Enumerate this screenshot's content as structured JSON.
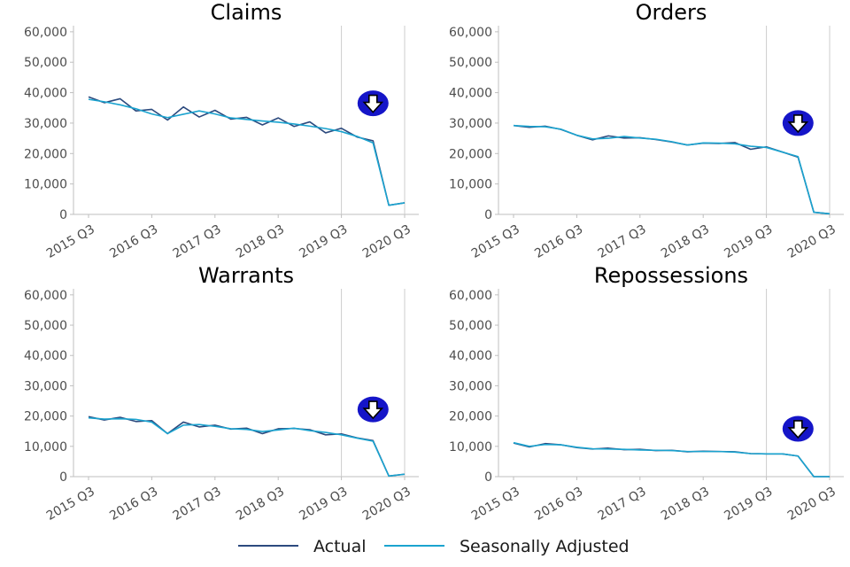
{
  "colors": {
    "actual": "#2c4a7e",
    "seasonally_adjusted": "#1aa3cf",
    "axis": "#bfbfbf",
    "marker_line": "#cccccc",
    "arrow_circle": "#1515c8",
    "arrow_outline": "#000000",
    "arrow_fill": "#ffffff"
  },
  "legend": {
    "actual_label": "Actual",
    "adjusted_label": "Seasonally Adjusted"
  },
  "chart_data": [
    {
      "type": "line",
      "title": "Claims",
      "x": [
        "2015 Q3",
        "2015 Q4",
        "2016 Q1",
        "2016 Q2",
        "2016 Q3",
        "2016 Q4",
        "2017 Q1",
        "2017 Q2",
        "2017 Q3",
        "2017 Q4",
        "2018 Q1",
        "2018 Q2",
        "2018 Q3",
        "2018 Q4",
        "2019 Q1",
        "2019 Q2",
        "2019 Q3",
        "2019 Q4",
        "2020 Q1",
        "2020 Q2",
        "2020 Q3"
      ],
      "xticks": [
        "2015 Q3",
        "2016 Q3",
        "2017 Q3",
        "2018 Q3",
        "2019 Q3",
        "2020 Q3"
      ],
      "yticks": [
        "0",
        "10,000",
        "20,000",
        "30,000",
        "40,000",
        "50,000",
        "60,000"
      ],
      "ylim": [
        0,
        62000
      ],
      "series": [
        {
          "name": "Actual",
          "values": [
            38600,
            36700,
            38000,
            34000,
            34500,
            31000,
            35300,
            32000,
            34200,
            31300,
            31900,
            29400,
            31700,
            28900,
            30400,
            26800,
            28300,
            25400,
            24200,
            3000,
            3800
          ]
        },
        {
          "name": "Seasonally Adjusted",
          "values": [
            37800,
            37000,
            36000,
            34700,
            33000,
            31800,
            32900,
            34000,
            33000,
            31700,
            31200,
            30700,
            30300,
            29700,
            29000,
            28200,
            27200,
            25600,
            23500,
            3000,
            3800
          ]
        }
      ],
      "vlines": [
        "2019 Q3",
        "2020 Q3"
      ],
      "indicator": {
        "direction": "down",
        "x": "2020 Q1",
        "y": 36500
      }
    },
    {
      "type": "line",
      "title": "Orders",
      "x": [
        "2015 Q3",
        "2015 Q4",
        "2016 Q1",
        "2016 Q2",
        "2016 Q3",
        "2016 Q4",
        "2017 Q1",
        "2017 Q2",
        "2017 Q3",
        "2017 Q4",
        "2018 Q1",
        "2018 Q2",
        "2018 Q3",
        "2018 Q4",
        "2019 Q1",
        "2019 Q2",
        "2019 Q3",
        "2019 Q4",
        "2020 Q1",
        "2020 Q2",
        "2020 Q3"
      ],
      "xticks": [
        "2015 Q3",
        "2016 Q3",
        "2017 Q3",
        "2018 Q3",
        "2019 Q3",
        "2020 Q3"
      ],
      "yticks": [
        "0",
        "10,000",
        "20,000",
        "30,000",
        "40,000",
        "50,000",
        "60,000"
      ],
      "ylim": [
        0,
        62000
      ],
      "series": [
        {
          "name": "Actual",
          "values": [
            29200,
            28600,
            29000,
            27900,
            26000,
            24500,
            25800,
            25100,
            25200,
            24600,
            23800,
            22800,
            23400,
            23300,
            23600,
            21400,
            22200,
            20500,
            18800,
            700,
            200
          ]
        },
        {
          "name": "Seasonally Adjusted",
          "values": [
            29200,
            28900,
            28800,
            28000,
            26000,
            24800,
            25000,
            25600,
            25100,
            24700,
            23900,
            22800,
            23500,
            23400,
            23200,
            22400,
            22000,
            20500,
            19000,
            700,
            200
          ]
        }
      ],
      "vlines": [
        "2019 Q3",
        "2020 Q3"
      ],
      "indicator": {
        "direction": "down",
        "x": "2020 Q1",
        "y": 30000
      }
    },
    {
      "type": "line",
      "title": "Warrants",
      "x": [
        "2015 Q3",
        "2015 Q4",
        "2016 Q1",
        "2016 Q2",
        "2016 Q3",
        "2016 Q4",
        "2017 Q1",
        "2017 Q2",
        "2017 Q3",
        "2017 Q4",
        "2018 Q1",
        "2018 Q2",
        "2018 Q3",
        "2018 Q4",
        "2019 Q1",
        "2019 Q2",
        "2019 Q3",
        "2019 Q4",
        "2020 Q1",
        "2020 Q2",
        "2020 Q3"
      ],
      "xticks": [
        "2015 Q3",
        "2016 Q3",
        "2017 Q3",
        "2018 Q3",
        "2019 Q3",
        "2020 Q3"
      ],
      "yticks": [
        "0",
        "10,000",
        "20,000",
        "30,000",
        "40,000",
        "50,000",
        "60,000"
      ],
      "ylim": [
        0,
        62000
      ],
      "series": [
        {
          "name": "Actual",
          "values": [
            19800,
            18700,
            19600,
            18200,
            18500,
            14200,
            18000,
            16400,
            17000,
            15700,
            16000,
            14200,
            15800,
            15900,
            15500,
            13800,
            14100,
            12800,
            11900,
            200,
            800
          ]
        },
        {
          "name": "Seasonally Adjusted",
          "values": [
            19400,
            19000,
            19100,
            18900,
            18000,
            14200,
            17000,
            17200,
            16600,
            15800,
            15600,
            14900,
            15400,
            16000,
            15200,
            14600,
            13800,
            12700,
            11700,
            200,
            800
          ]
        }
      ],
      "vlines": [
        "2019 Q3",
        "2020 Q3"
      ],
      "indicator": {
        "direction": "down",
        "x": "2020 Q1",
        "y": 22200
      }
    },
    {
      "type": "line",
      "title": "Repossessions",
      "x": [
        "2015 Q3",
        "2015 Q4",
        "2016 Q1",
        "2016 Q2",
        "2016 Q3",
        "2016 Q4",
        "2017 Q1",
        "2017 Q2",
        "2017 Q3",
        "2017 Q4",
        "2018 Q1",
        "2018 Q2",
        "2018 Q3",
        "2018 Q4",
        "2019 Q1",
        "2019 Q2",
        "2019 Q3",
        "2019 Q4",
        "2020 Q1",
        "2020 Q2",
        "2020 Q3"
      ],
      "xticks": [
        "2015 Q3",
        "2016 Q3",
        "2017 Q3",
        "2018 Q3",
        "2019 Q3",
        "2020 Q3"
      ],
      "yticks": [
        "0",
        "10,000",
        "20,000",
        "30,000",
        "40,000",
        "50,000",
        "60,000"
      ],
      "ylim": [
        0,
        62000
      ],
      "series": [
        {
          "name": "Actual",
          "values": [
            11100,
            9800,
            10900,
            10500,
            9600,
            9100,
            9400,
            8900,
            9000,
            8600,
            8700,
            8200,
            8400,
            8300,
            8200,
            7600,
            7500,
            7500,
            6800,
            0,
            0
          ]
        },
        {
          "name": "Seasonally Adjusted",
          "values": [
            11200,
            10000,
            10600,
            10500,
            9700,
            9200,
            9100,
            9000,
            8800,
            8700,
            8600,
            8300,
            8300,
            8300,
            8100,
            7600,
            7500,
            7500,
            6800,
            0,
            0
          ]
        }
      ],
      "vlines": [
        "2019 Q3",
        "2020 Q3"
      ],
      "indicator": {
        "direction": "down",
        "x": "2020 Q1",
        "y": 15800
      }
    }
  ]
}
